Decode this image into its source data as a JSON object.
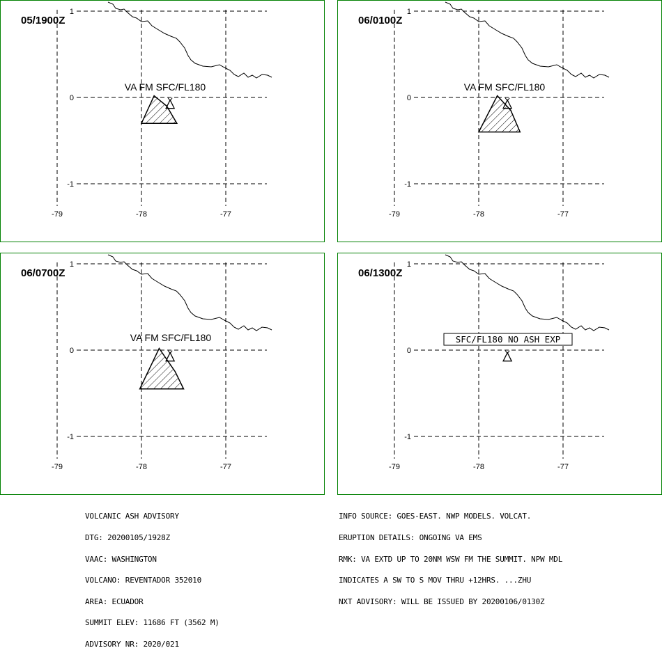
{
  "colors": {
    "frame": "#008000",
    "line": "#000000",
    "background": "#ffffff"
  },
  "axes": {
    "x_ticks": [
      "-79",
      "-78",
      "-77"
    ],
    "y_ticks": [
      "1",
      "0",
      "-1"
    ]
  },
  "panels": [
    {
      "time": "05/1900Z",
      "annotation": "VA FM SFC/FL180",
      "ash_polygon_lonlat": [
        [
          -77.85,
          0.02
        ],
        [
          -77.7,
          -0.1
        ],
        [
          -77.58,
          -0.3
        ],
        [
          -78.0,
          -0.3
        ]
      ],
      "no_ash": false
    },
    {
      "time": "06/0100Z",
      "annotation": "VA FM SFC/FL180",
      "ash_polygon_lonlat": [
        [
          -77.78,
          0.02
        ],
        [
          -77.62,
          -0.15
        ],
        [
          -77.51,
          -0.4
        ],
        [
          -78.0,
          -0.4
        ]
      ],
      "no_ash": false
    },
    {
      "time": "06/0700Z",
      "annotation": "VA FM SFC/FL180",
      "ash_polygon_lonlat": [
        [
          -77.79,
          0.02
        ],
        [
          -77.6,
          -0.25
        ],
        [
          -77.5,
          -0.45
        ],
        [
          -78.02,
          -0.45
        ]
      ],
      "no_ash": false
    },
    {
      "time": "06/1300Z",
      "annotation": "SFC/FL180 NO ASH EXP",
      "ash_polygon_lonlat": [],
      "no_ash": true
    }
  ],
  "advisory_left": [
    "VOLCANIC ASH ADVISORY",
    "DTG: 20200105/1928Z",
    "VAAC: WASHINGTON",
    "VOLCANO: REVENTADOR 352010",
    "AREA: ECUADOR",
    "SUMMIT ELEV: 11686 FT (3562 M)",
    "ADVISORY NR: 2020/021"
  ],
  "advisory_right": [
    "INFO SOURCE: GOES-EAST. NWP MODELS. VOLCAT.",
    "ERUPTION DETAILS: ONGOING VA EMS",
    "RMK: VA EXTD UP TO 20NM WSW FM THE SUMMIT. NPW MDL",
    "INDICATES A SW TO S MOV THRU +12HRS. ...ZHU",
    "NXT ADVISORY: WILL BE ISSUED BY 20200106/0130Z"
  ]
}
